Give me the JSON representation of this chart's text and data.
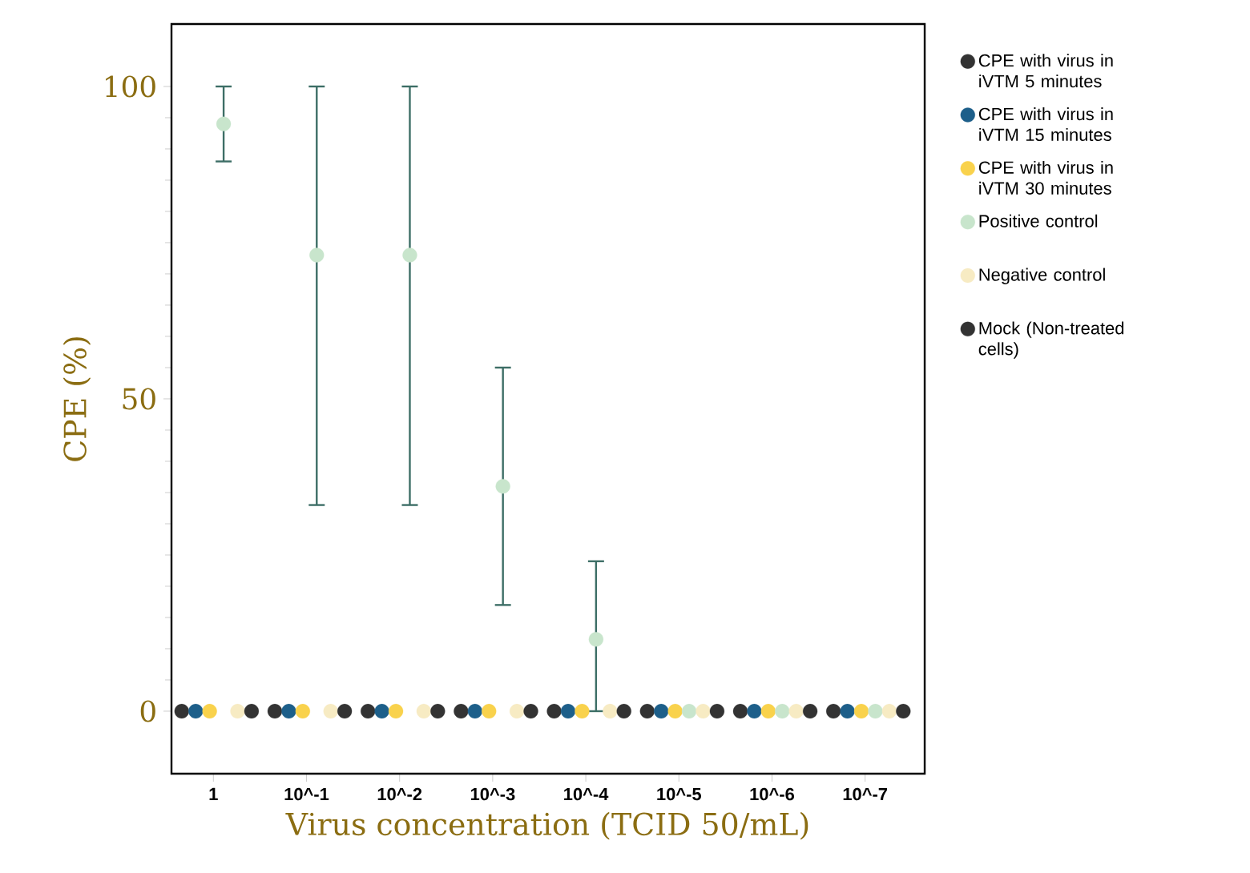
{
  "chart_data": {
    "type": "scatter",
    "xlabel": "Virus concentration (TCID 50/mL)",
    "ylabel": "CPE (%)",
    "categories": [
      "1",
      "10^-1",
      "10^-2",
      "10^-3",
      "10^-4",
      "10^-5",
      "10^-6",
      "10^-7"
    ],
    "ylim": [
      -10,
      110
    ],
    "yticks": [
      0,
      50,
      100
    ],
    "grid": false,
    "legend": "right",
    "marker": "circle",
    "series": [
      {
        "name": "CPE  with virus in iVTM 5 minutes",
        "color": "#333333",
        "values": [
          0,
          0,
          0,
          0,
          0,
          0,
          0,
          0
        ]
      },
      {
        "name": "CPE  with virus in iVTM 15 minutes",
        "color": "#1d5f8a",
        "values": [
          0,
          0,
          0,
          0,
          0,
          0,
          0,
          0
        ]
      },
      {
        "name": "CPE  with virus in iVTM 30 minutes",
        "color": "#f9d24c",
        "values": [
          0,
          0,
          0,
          0,
          0,
          0,
          0,
          0
        ]
      },
      {
        "name": "Positive control",
        "color": "#c8e5cc",
        "values": [
          94,
          73,
          73,
          36,
          11.5,
          0,
          0,
          0
        ],
        "errors": [
          [
            88,
            100
          ],
          [
            33,
            100
          ],
          [
            33,
            100
          ],
          [
            17,
            55
          ],
          [
            0,
            24
          ],
          null,
          null,
          null
        ]
      },
      {
        "name": "Negative control",
        "color": "#f7ebc3",
        "values": [
          0,
          0,
          0,
          0,
          0,
          0,
          0,
          0
        ]
      },
      {
        "name": "Mock (Non-treated cells)",
        "color": "#333333",
        "values": [
          0,
          0,
          0,
          0,
          0,
          0,
          0,
          0
        ]
      }
    ]
  }
}
